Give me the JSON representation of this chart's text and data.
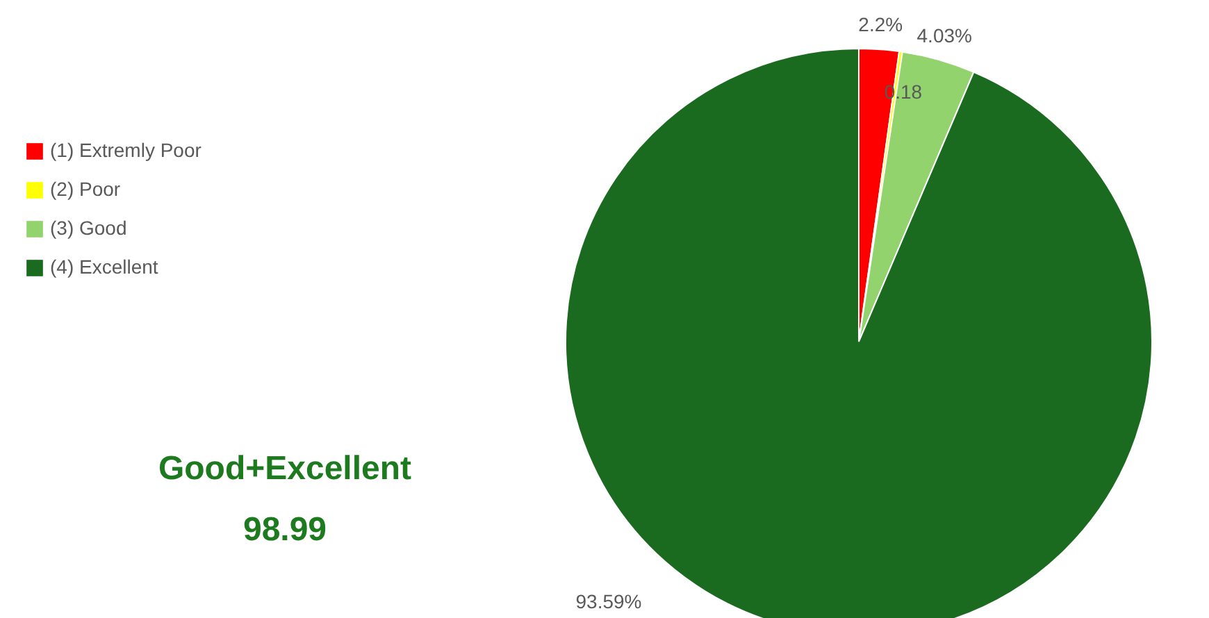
{
  "chart_data": {
    "type": "pie",
    "categories": [
      "(1) Extremly Poor",
      "(2) Poor",
      "(3) Good",
      "(4) Excellent"
    ],
    "values": [
      2.2,
      0.18,
      4.03,
      93.59
    ],
    "colors": [
      "#ff0000",
      "#ffff00",
      "#92d36e",
      "#1a6b1f"
    ],
    "value_labels": [
      "2.2%",
      "0.18",
      "4.03%",
      "93.59%"
    ],
    "legend": "left",
    "annotations": [
      "Good+Excellent",
      "98.99"
    ]
  }
}
